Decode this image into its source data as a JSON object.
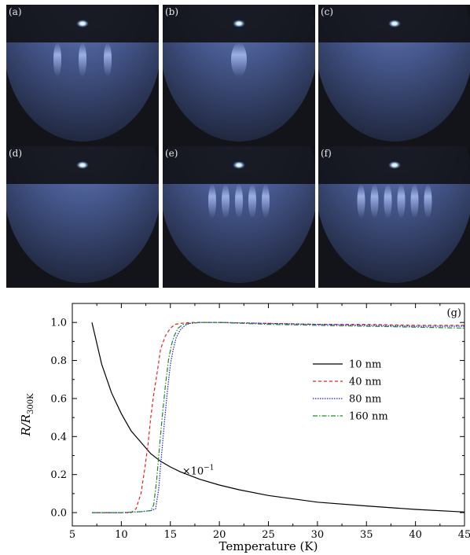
{
  "panels": [
    {
      "label": "(a)",
      "streaks": 3
    },
    {
      "label": "(b)",
      "streaks": 1
    },
    {
      "label": "(c)",
      "streaks": 0
    },
    {
      "label": "(d)",
      "streaks": 0
    },
    {
      "label": "(e)",
      "streaks": 5
    },
    {
      "label": "(f)",
      "streaks": 6
    }
  ],
  "chart_data": {
    "type": "line",
    "panel_label": "(g)",
    "xlabel": "Temperature (K)",
    "ylabel_main": "R/R",
    "ylabel_sub": "300K",
    "xlim": [
      5,
      45
    ],
    "ylim": [
      -0.07,
      1.1
    ],
    "xticks": [
      5,
      10,
      15,
      20,
      25,
      30,
      35,
      40,
      45
    ],
    "yticks": [
      "0.0",
      "0.2",
      "0.4",
      "0.6",
      "0.8",
      "1.0"
    ],
    "annotation": {
      "base": "×10",
      "exp": "−1",
      "x": 16.2,
      "y": 0.2
    },
    "legend_position": "center-right",
    "series": [
      {
        "name": "10 nm",
        "color": "#000000",
        "dash": "",
        "x": [
          7,
          8,
          9,
          10,
          11,
          12,
          13,
          14,
          15,
          16,
          18,
          20,
          22,
          25,
          30,
          35,
          40,
          45
        ],
        "y": [
          1.0,
          0.78,
          0.63,
          0.52,
          0.43,
          0.37,
          0.31,
          0.27,
          0.24,
          0.215,
          0.175,
          0.145,
          0.12,
          0.09,
          0.055,
          0.035,
          0.017,
          0.003
        ]
      },
      {
        "name": "40 nm",
        "color": "#e8201c",
        "dash": "4,3",
        "x": [
          7,
          10,
          11,
          11.5,
          12,
          12.3,
          12.7,
          13,
          13.3,
          13.7,
          14,
          14.5,
          15,
          15.5,
          16,
          17,
          20,
          25,
          30,
          35,
          40,
          45
        ],
        "y": [
          0.0,
          0.0,
          0.0,
          0.02,
          0.1,
          0.2,
          0.35,
          0.5,
          0.62,
          0.75,
          0.86,
          0.93,
          0.97,
          0.99,
          0.995,
          1.0,
          1.0,
          0.995,
          0.99,
          0.99,
          0.985,
          0.985
        ]
      },
      {
        "name": "80 nm",
        "color": "#1a1aee",
        "dash": "1.5,1.5",
        "x": [
          7,
          10,
          12,
          13,
          13.5,
          13.8,
          14.1,
          14.4,
          14.7,
          15,
          15.3,
          15.6,
          16,
          16.5,
          17,
          18,
          20,
          25,
          30,
          35,
          40,
          45
        ],
        "y": [
          0.0,
          0.0,
          0.005,
          0.01,
          0.02,
          0.12,
          0.3,
          0.48,
          0.64,
          0.78,
          0.86,
          0.92,
          0.96,
          0.985,
          0.995,
          1.0,
          1.0,
          0.995,
          0.99,
          0.985,
          0.98,
          0.98
        ]
      },
      {
        "name": "160 nm",
        "color": "#1d8a2a",
        "dash": "6,2,1.5,2",
        "x": [
          7,
          10,
          12,
          13,
          13.3,
          13.6,
          13.9,
          14.2,
          14.5,
          14.8,
          15.1,
          15.4,
          15.8,
          16.3,
          17,
          18,
          20,
          25,
          30,
          35,
          40,
          45
        ],
        "y": [
          0.0,
          0.0,
          0.005,
          0.01,
          0.04,
          0.17,
          0.35,
          0.52,
          0.67,
          0.8,
          0.88,
          0.93,
          0.97,
          0.99,
          0.995,
          1.0,
          1.0,
          0.99,
          0.985,
          0.98,
          0.975,
          0.97
        ]
      }
    ]
  }
}
